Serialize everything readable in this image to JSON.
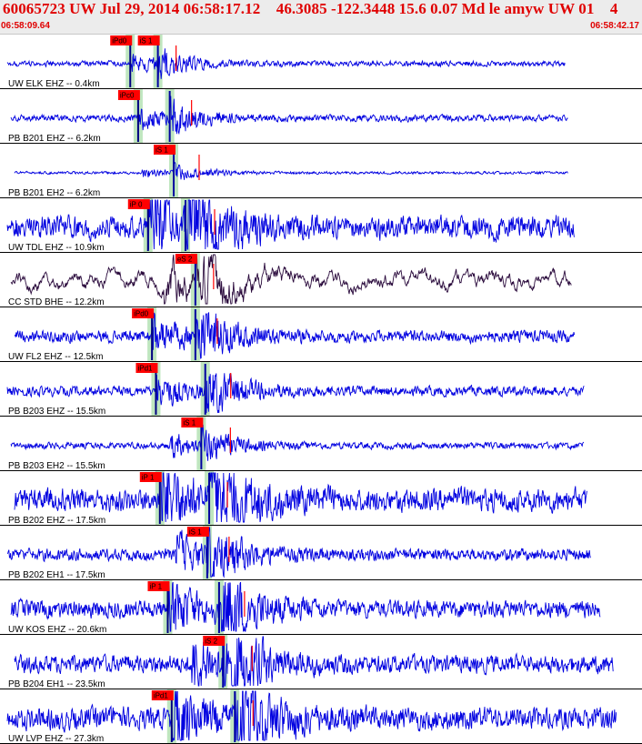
{
  "title": "60065723 UW Jul 29, 2014 06:58:17.12    46.3085 -122.3448 15.6 0.07 Md le amyw UW 01    4",
  "time_start": "06:58:09.64",
  "time_end": "06:58:42.17",
  "colors": {
    "trace": "#0000e0",
    "trace_bh": "#2a0a3c",
    "pick_box": "#ff0000",
    "pick_line": "#ff0000",
    "window": "#bfe6bf",
    "divider": "#000000"
  },
  "chart_data": {
    "type": "seismogram",
    "x_range_s": [
      0,
      32.53
    ],
    "channels": [
      {
        "label": "UW ELK EHZ -- 0.4km",
        "amp": 0.1,
        "emph": 1.0,
        "noise": 0.1,
        "start": 0.4,
        "end": 0.88,
        "p_pick": {
          "label": "iPd0",
          "t": 6.6
        },
        "s_pick": {
          "label": "iS 1",
          "t": 8.0
        },
        "wave": "#0000e0"
      },
      {
        "label": "PB B201 EHZ -- 6.2km",
        "amp": 0.12,
        "emph": 1.0,
        "noise": 0.12,
        "start": 0.4,
        "end": 0.885,
        "p_pick": {
          "label": "iPc0",
          "t": 7.0
        },
        "s_pick": {
          "label": "",
          "t": 8.6
        },
        "wave": "#0000e0"
      },
      {
        "label": "PB B201 EH2 -- 6.2km",
        "amp": 0.05,
        "emph": 1.0,
        "noise": 0.05,
        "start": 0.4,
        "end": 0.885,
        "p_pick": null,
        "s_pick": {
          "label": "iS 1",
          "t": 8.8
        },
        "wave": "#0000e0"
      },
      {
        "label": "UW TDL EHZ -- 10.9km",
        "amp": 0.42,
        "emph": 1.0,
        "noise": 0.4,
        "start": 0.4,
        "end": 0.895,
        "p_pick": {
          "label": "iP 0",
          "t": 7.5
        },
        "s_pick": {
          "label": "",
          "t": 9.4
        },
        "wave": "#0000e0"
      },
      {
        "label": "CC STD BHE -- 12.2km",
        "amp": 0.45,
        "emph": 1.0,
        "noise": 0.4,
        "start": 0.4,
        "end": 0.89,
        "p_pick": null,
        "s_pick": {
          "label": "eS 2",
          "t": 9.9
        },
        "wave": "#2a0a3c"
      },
      {
        "label": "UW FL2 EHZ -- 12.5km",
        "amp": 0.22,
        "emph": 1.0,
        "noise": 0.2,
        "start": 0.4,
        "end": 0.895,
        "p_pick": {
          "label": "iPd0",
          "t": 7.7
        },
        "s_pick": {
          "label": "",
          "t": 9.9
        },
        "wave": "#0000e0"
      },
      {
        "label": "PB B203 EHZ -- 15.5km",
        "amp": 0.18,
        "emph": 1.0,
        "noise": 0.18,
        "start": 0.4,
        "end": 0.91,
        "p_pick": {
          "label": "iPd1",
          "t": 7.9
        },
        "s_pick": {
          "label": "",
          "t": 10.4
        },
        "wave": "#0000e0"
      },
      {
        "label": "PB B203 EH2 -- 15.5km",
        "amp": 0.12,
        "emph": 1.0,
        "noise": 0.12,
        "start": 0.4,
        "end": 0.91,
        "p_pick": null,
        "s_pick": {
          "label": "iS 1",
          "t": 10.2
        },
        "wave": "#0000e0"
      },
      {
        "label": "PB B202 EHZ -- 17.5km",
        "amp": 0.42,
        "emph": 1.0,
        "noise": 0.4,
        "start": 0.4,
        "end": 0.915,
        "p_pick": {
          "label": "iP 1",
          "t": 8.1
        },
        "s_pick": {
          "label": "",
          "t": 10.6
        },
        "wave": "#0000e0"
      },
      {
        "label": "PB B202 EH1 -- 17.5km",
        "amp": 0.22,
        "emph": 1.0,
        "noise": 0.2,
        "start": 0.4,
        "end": 0.92,
        "p_pick": null,
        "s_pick": {
          "label": "iS 1",
          "t": 10.5
        },
        "wave": "#0000e0"
      },
      {
        "label": "UW KOS EHZ -- 20.6km",
        "amp": 0.32,
        "emph": 1.0,
        "noise": 0.3,
        "start": 0.4,
        "end": 0.935,
        "p_pick": {
          "label": "iP 1",
          "t": 8.5
        },
        "s_pick": {
          "label": "",
          "t": 11.1
        },
        "wave": "#0000e0"
      },
      {
        "label": "PB B204 EH1 -- 23.5km",
        "amp": 0.33,
        "emph": 1.0,
        "noise": 0.3,
        "start": 0.4,
        "end": 0.955,
        "p_pick": null,
        "s_pick": {
          "label": "iS 2",
          "t": 11.3
        },
        "wave": "#0000e0"
      },
      {
        "label": "UW LVP EHZ -- 27.3km",
        "amp": 0.4,
        "emph": 1.0,
        "noise": 0.4,
        "start": 0.4,
        "end": 0.96,
        "p_pick": {
          "label": "iPd1",
          "t": 8.7
        },
        "s_pick": {
          "label": "",
          "t": 11.9
        },
        "wave": "#0000e0"
      }
    ]
  }
}
